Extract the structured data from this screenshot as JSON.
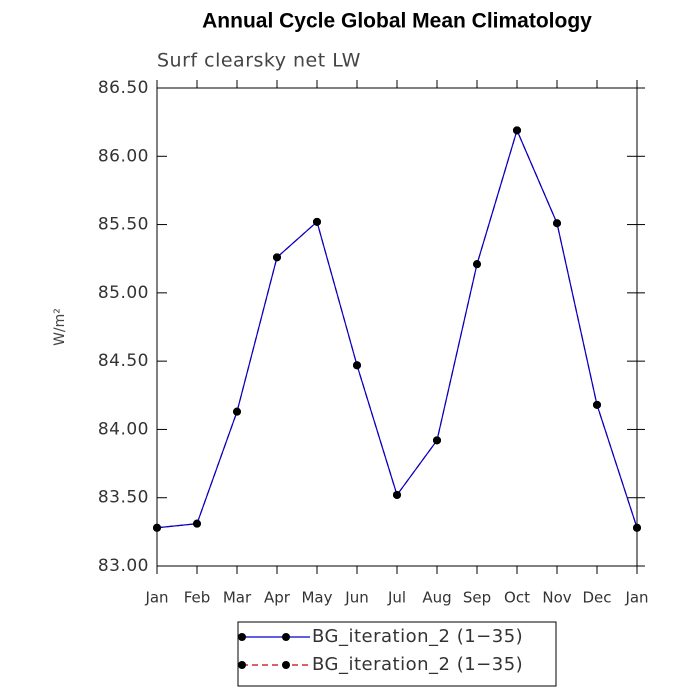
{
  "chart_data": {
    "type": "line",
    "title": "Annual Cycle Global Mean Climatology",
    "subtitle": "Surf clearsky net LW",
    "y_label": "W/m²",
    "categories": [
      "Jan",
      "Feb",
      "Mar",
      "Apr",
      "May",
      "Jun",
      "Jul",
      "Aug",
      "Sep",
      "Oct",
      "Nov",
      "Dec",
      "Jan"
    ],
    "series": [
      {
        "name": "BG_iteration_2 (1−35)",
        "color": "#0000cc",
        "dash": false,
        "marker_color": "#000000",
        "values": [
          83.28,
          83.31,
          84.13,
          85.26,
          85.52,
          84.47,
          83.52,
          83.92,
          85.21,
          86.19,
          85.51,
          84.18,
          83.28
        ]
      },
      {
        "name": "BG_iteration_2 (1−35)",
        "color": "#cc0000",
        "dash": true,
        "marker_color": "#000000",
        "values": [
          83.28,
          83.31,
          84.13,
          85.26,
          85.52,
          84.47,
          83.52,
          83.92,
          85.21,
          86.19,
          85.51,
          84.18,
          83.28
        ]
      }
    ],
    "ylim": [
      83.0,
      86.5
    ],
    "yticks": [
      {
        "value": 83.0,
        "label": "83.00"
      },
      {
        "value": 83.5,
        "label": "83.50"
      },
      {
        "value": 84.0,
        "label": "84.00"
      },
      {
        "value": 84.5,
        "label": "84.50"
      },
      {
        "value": 85.0,
        "label": "85.00"
      },
      {
        "value": 85.5,
        "label": "85.50"
      },
      {
        "value": 86.0,
        "label": "86.00"
      },
      {
        "value": 86.5,
        "label": "86.50"
      }
    ]
  }
}
